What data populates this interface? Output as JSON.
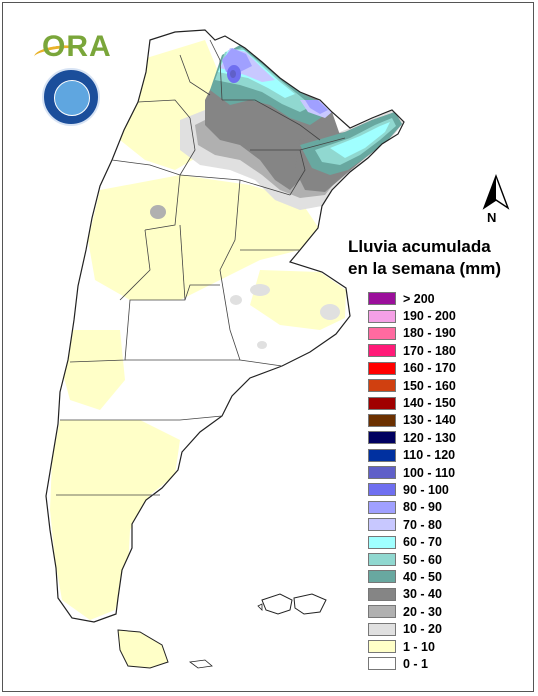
{
  "map": {
    "legend_title_line1": "Lluvia acumulada",
    "legend_title_line2": "en la semana (mm)",
    "north_label": "N",
    "logo_text": "ORA"
  },
  "legend": [
    {
      "label": "> 200",
      "color": "#9b0f9b"
    },
    {
      "label": "190 - 200",
      "color": "#f5a0e6"
    },
    {
      "label": "180 - 190",
      "color": "#ff6aa0"
    },
    {
      "label": "170 - 180",
      "color": "#ff1a78"
    },
    {
      "label": "160 - 170",
      "color": "#ff0000"
    },
    {
      "label": "150 - 160",
      "color": "#d04010"
    },
    {
      "label": "140 - 150",
      "color": "#a00000"
    },
    {
      "label": "130 - 140",
      "color": "#6b3000"
    },
    {
      "label": "120 - 130",
      "color": "#000060"
    },
    {
      "label": "110 - 120",
      "color": "#0030a0"
    },
    {
      "label": "100 - 110",
      "color": "#6060c8"
    },
    {
      "label": "90 - 100",
      "color": "#6f6ff0"
    },
    {
      "label": "80 - 90",
      "color": "#a0a0ff"
    },
    {
      "label": "70 - 80",
      "color": "#c8c8ff"
    },
    {
      "label": "60 - 70",
      "color": "#a0ffff"
    },
    {
      "label": "50 - 60",
      "color": "#90d8d0"
    },
    {
      "label": "40 - 50",
      "color": "#68a8a0"
    },
    {
      "label": "30 - 40",
      "color": "#858585"
    },
    {
      "label": "20 - 30",
      "color": "#b0b0b0"
    },
    {
      "label": "10 - 20",
      "color": "#e0e0e0"
    },
    {
      "label": "1 - 10",
      "color": "#ffffc8"
    },
    {
      "label": "0 - 1",
      "color": "#ffffff"
    }
  ]
}
